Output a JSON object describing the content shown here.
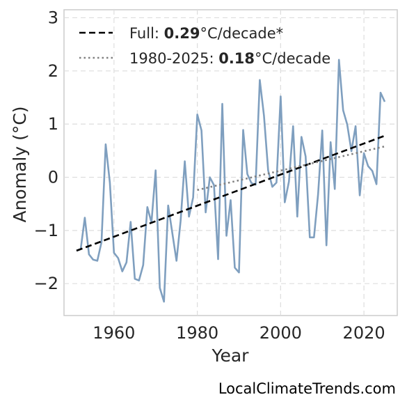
{
  "chart_data": {
    "type": "line",
    "xlabel": "Year",
    "ylabel": "Anomaly (°C)",
    "xlim": [
      1948,
      2028
    ],
    "ylim": [
      -2.6,
      3.15
    ],
    "x_ticks": [
      1960,
      1980,
      2000,
      2020
    ],
    "y_ticks": [
      -2,
      -1,
      0,
      1,
      2,
      3
    ],
    "grid": true,
    "legend_position": "top-left",
    "series": [
      {
        "style": "solid",
        "color": "#7f9fbf",
        "x": [
          1951,
          1952,
          1953,
          1954,
          1955,
          1956,
          1957,
          1958,
          1959,
          1960,
          1961,
          1962,
          1963,
          1964,
          1965,
          1966,
          1967,
          1968,
          1969,
          1970,
          1971,
          1972,
          1973,
          1974,
          1975,
          1976,
          1977,
          1978,
          1979,
          1980,
          1981,
          1982,
          1983,
          1984,
          1985,
          1986,
          1987,
          1988,
          1989,
          1990,
          1991,
          1992,
          1993,
          1994,
          1995,
          1996,
          1997,
          1998,
          1999,
          2000,
          2001,
          2002,
          2003,
          2004,
          2005,
          2006,
          2007,
          2008,
          2009,
          2010,
          2011,
          2012,
          2013,
          2014,
          2015,
          2016,
          2017,
          2018,
          2019,
          2020,
          2021,
          2022,
          2023,
          2024,
          2025
        ],
        "values": [
          -1.38,
          -1.35,
          -0.76,
          -1.45,
          -1.55,
          -1.57,
          -1.22,
          0.62,
          -0.1,
          -1.42,
          -1.52,
          -1.77,
          -1.6,
          -0.84,
          -1.91,
          -1.94,
          -1.65,
          -0.56,
          -0.85,
          0.13,
          -2.08,
          -2.34,
          -0.53,
          -1.05,
          -1.57,
          -0.82,
          0.3,
          -0.74,
          -0.38,
          1.18,
          0.88,
          -0.66,
          0.0,
          -0.15,
          -1.54,
          1.38,
          -1.1,
          -0.43,
          -1.7,
          -1.79,
          0.89,
          0.06,
          -0.11,
          -0.14,
          1.83,
          1.16,
          0.13,
          -0.18,
          -0.1,
          1.52,
          -0.47,
          -0.08,
          0.96,
          -0.74,
          0.76,
          0.39,
          -1.13,
          -1.13,
          -0.32,
          0.88,
          -1.28,
          0.66,
          -0.22,
          2.21,
          1.26,
          0.99,
          0.49,
          0.96,
          -0.34,
          0.45,
          0.21,
          0.12,
          -0.13,
          1.59,
          1.42
        ]
      },
      {
        "name": "Full: 0.29°C/decade*",
        "style": "dashed",
        "color": "#000000",
        "x": [
          1951,
          2025
        ],
        "values": [
          -1.38,
          0.78
        ]
      },
      {
        "name": "1980-2025: 0.18°C/decade",
        "style": "dotted",
        "color": "#808080",
        "x": [
          1980,
          2025
        ],
        "values": [
          -0.24,
          0.58
        ]
      }
    ],
    "legend": [
      {
        "prefix": "Full: ",
        "bold": "0.29",
        "suffix": "°C/decade*"
      },
      {
        "prefix": "1980-2025: ",
        "bold": "0.18",
        "suffix": "°C/decade"
      }
    ]
  },
  "credit": "LocalClimateTrends.com"
}
